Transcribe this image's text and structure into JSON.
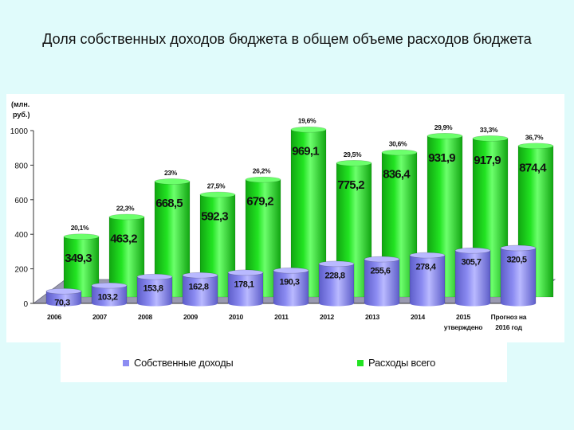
{
  "page": {
    "title": "Доля собственных доходов бюджета в общем объеме расходов бюджета"
  },
  "colors": {
    "own": "#8c8cf2",
    "own_dark": "#5d5dc9",
    "own_top": "#b9b9ff",
    "total": "#22e322",
    "total_dark": "#11a511",
    "total_top": "#6cff6c",
    "floor": "#9a9ab0"
  },
  "chart_data": {
    "type": "bar",
    "title": "Доля собственных доходов бюджета в общем объеме расходов бюджета",
    "ylabel": "(млн. руб.)",
    "ylim": [
      0,
      1000
    ],
    "yticks": [
      "0",
      "200",
      "400",
      "600",
      "800",
      "1000"
    ],
    "categories": [
      "2006",
      "2007",
      "2008",
      "2009",
      "2010",
      "2011",
      "2012",
      "2013",
      "2014",
      "2015 утверждено",
      "Прогноз на 2016 год"
    ],
    "category_lines": [
      [
        "2006"
      ],
      [
        "2007"
      ],
      [
        "2008"
      ],
      [
        "2009"
      ],
      [
        "2010"
      ],
      [
        "2011"
      ],
      [
        "2012"
      ],
      [
        "2013"
      ],
      [
        "2014"
      ],
      [
        "2015",
        "утверждено"
      ],
      [
        "Прогноз на",
        "2016 год"
      ]
    ],
    "series": [
      {
        "name": "Собственные доходы",
        "values": [
          70.3,
          103.2,
          153.8,
          162.8,
          178.1,
          190.3,
          228.8,
          255.6,
          278.4,
          305.7,
          320.5
        ],
        "labels": [
          "70,3",
          "103,2",
          "153,8",
          "162,8",
          "178,1",
          "190,3",
          "228,8",
          "255,6",
          "278,4",
          "305,7",
          "320,5"
        ]
      },
      {
        "name": "Расходы всего",
        "values": [
          349.3,
          463.2,
          668.5,
          592.3,
          679.2,
          969.1,
          775.2,
          836.4,
          931.9,
          917.9,
          874.4
        ],
        "labels": [
          "349,3",
          "463,2",
          "668,5",
          "592,3",
          "679,2",
          "969,1",
          "775,2",
          "836,4",
          "931,9",
          "917,9",
          "874,4"
        ]
      }
    ],
    "shares": [
      "20,1%",
      "22,3%",
      "23%",
      "27,5%",
      "26,2%",
      "19,6%",
      "29,5%",
      "30,6%",
      "29,9%",
      "33,3%",
      "36,7%"
    ],
    "legend": [
      "Собственные доходы",
      "Расходы всего"
    ],
    "legend_position": "bottom"
  }
}
